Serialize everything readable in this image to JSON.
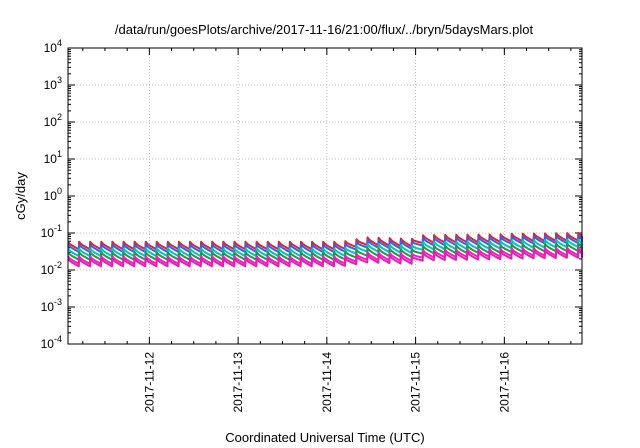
{
  "chart_data": {
    "type": "line",
    "title": "/data/run/goesPlots/archive/2017-11-16/21:00/flux/../bryn/5daysMars.plot",
    "xlabel": "Coordinated Universal Time (UTC)",
    "ylabel": "cGy/day",
    "yscale": "log",
    "ylim": [
      0.0001,
      10000
    ],
    "y_ticks": [
      {
        "base": "10",
        "exp": "-4"
      },
      {
        "base": "10",
        "exp": "-3"
      },
      {
        "base": "10",
        "exp": "-2"
      },
      {
        "base": "10",
        "exp": "-1"
      },
      {
        "base": "10",
        "exp": "0"
      },
      {
        "base": "10",
        "exp": "1"
      },
      {
        "base": "10",
        "exp": "2"
      },
      {
        "base": "10",
        "exp": "3"
      },
      {
        "base": "10",
        "exp": "4"
      }
    ],
    "xlim": [
      "2017-11-11 02:00",
      "2017-11-16 21:00"
    ],
    "x_ticks": [
      "2017-11-12",
      "2017-11-13",
      "2017-11-14",
      "2017-11-15",
      "2017-11-16"
    ],
    "grid": true,
    "legend": "none",
    "pattern": "sawtooth, period ~3 hours",
    "series": [
      {
        "color": "#e8202a",
        "points": [
          [
            "2017-11-11 02:00",
            0.052
          ],
          [
            "2017-11-14 04:00",
            0.052
          ],
          [
            "2017-11-14 11:00",
            0.068
          ],
          [
            "2017-11-14 23:00",
            0.062
          ],
          [
            "2017-11-15 02:00",
            0.078
          ],
          [
            "2017-11-15 23:00",
            0.082
          ],
          [
            "2017-11-16 02:00",
            0.085
          ],
          [
            "2017-11-16 21:00",
            0.09
          ]
        ]
      },
      {
        "color": "#3a5cf0",
        "points": [
          [
            "2017-11-11 02:00",
            0.044
          ],
          [
            "2017-11-14 04:00",
            0.044
          ],
          [
            "2017-11-14 11:00",
            0.058
          ],
          [
            "2017-11-14 23:00",
            0.053
          ],
          [
            "2017-11-15 02:00",
            0.066
          ],
          [
            "2017-11-15 23:00",
            0.07
          ],
          [
            "2017-11-16 02:00",
            0.073
          ],
          [
            "2017-11-16 21:00",
            0.077
          ]
        ]
      },
      {
        "color": "#00c2c2",
        "points": [
          [
            "2017-11-11 02:00",
            0.034
          ],
          [
            "2017-11-14 04:00",
            0.034
          ],
          [
            "2017-11-14 11:00",
            0.045
          ],
          [
            "2017-11-14 23:00",
            0.041
          ],
          [
            "2017-11-15 02:00",
            0.051
          ],
          [
            "2017-11-15 23:00",
            0.054
          ],
          [
            "2017-11-16 02:00",
            0.056
          ],
          [
            "2017-11-16 21:00",
            0.06
          ]
        ]
      },
      {
        "color": "#1f9a3c",
        "points": [
          [
            "2017-11-11 02:00",
            0.027
          ],
          [
            "2017-11-14 04:00",
            0.027
          ],
          [
            "2017-11-14 11:00",
            0.035
          ],
          [
            "2017-11-14 23:00",
            0.032
          ],
          [
            "2017-11-15 02:00",
            0.04
          ],
          [
            "2017-11-15 23:00",
            0.042
          ],
          [
            "2017-11-16 02:00",
            0.044
          ],
          [
            "2017-11-16 21:00",
            0.047
          ]
        ]
      },
      {
        "color": "#e91fd8",
        "points": [
          [
            "2017-11-11 02:00",
            0.021
          ],
          [
            "2017-11-14 04:00",
            0.021
          ],
          [
            "2017-11-14 11:00",
            0.027
          ],
          [
            "2017-11-14 23:00",
            0.025
          ],
          [
            "2017-11-15 02:00",
            0.031
          ],
          [
            "2017-11-15 23:00",
            0.033
          ],
          [
            "2017-11-16 02:00",
            0.034
          ],
          [
            "2017-11-16 21:00",
            0.036
          ]
        ]
      },
      {
        "color": "#f01aa8",
        "points": [
          [
            "2017-11-11 02:00",
            0.018
          ],
          [
            "2017-11-14 04:00",
            0.018
          ],
          [
            "2017-11-14 11:00",
            0.023
          ],
          [
            "2017-11-14 23:00",
            0.021
          ],
          [
            "2017-11-15 02:00",
            0.026
          ],
          [
            "2017-11-15 23:00",
            0.028
          ],
          [
            "2017-11-16 02:00",
            0.029
          ],
          [
            "2017-11-16 21:00",
            0.031
          ]
        ]
      }
    ]
  }
}
